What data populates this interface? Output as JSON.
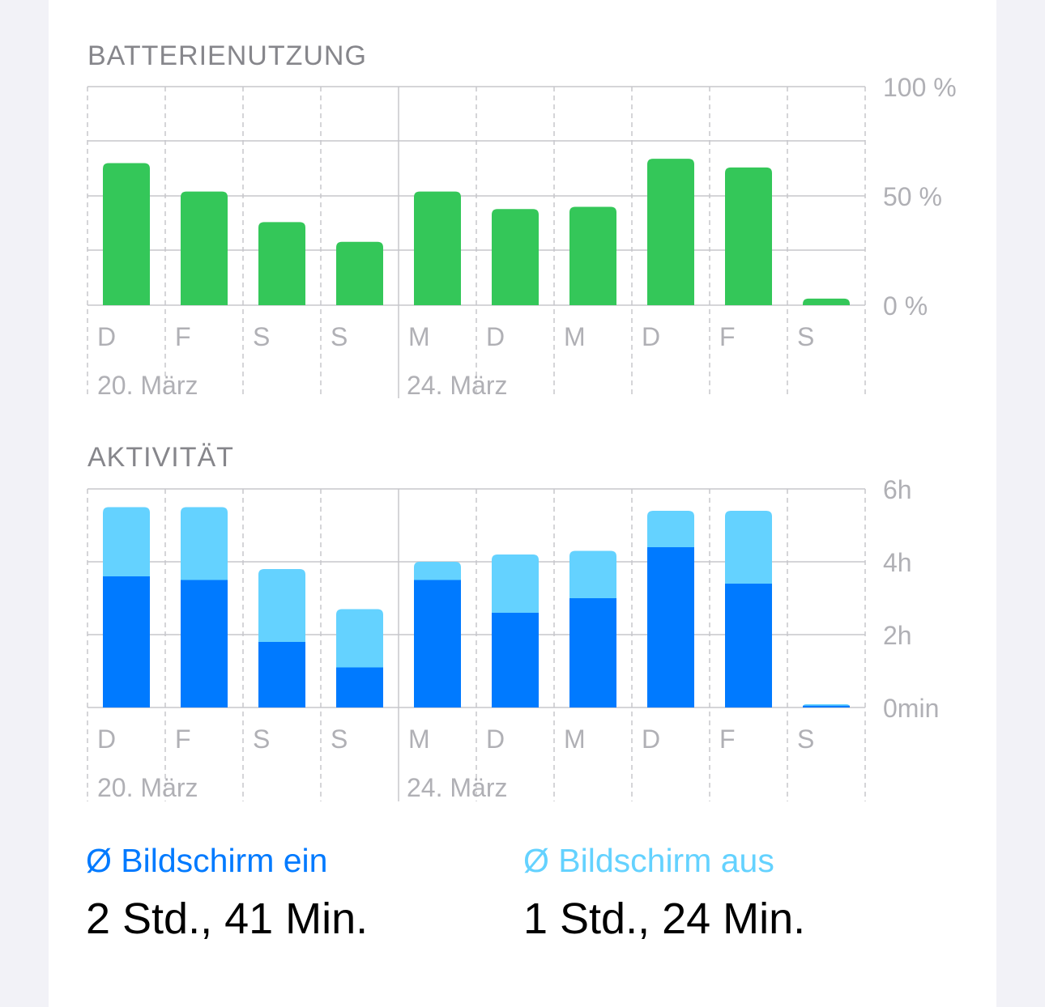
{
  "battery": {
    "title": "BATTERIENUTZUNG",
    "y_ticks": [
      "100 %",
      "50 %",
      "0 %"
    ]
  },
  "activity": {
    "title": "AKTIVITÄT",
    "y_ticks": [
      "6h",
      "4h",
      "2h",
      "0min"
    ]
  },
  "day_labels": [
    "D",
    "F",
    "S",
    "S",
    "M",
    "D",
    "M",
    "D",
    "F",
    "S"
  ],
  "date_labels": [
    "20. März",
    "24. März"
  ],
  "legend": {
    "screen_on_label": "Ø Bildschirm ein",
    "screen_on_value": "2 Std., 41 Min.",
    "screen_off_label": "Ø Bildschirm aus",
    "screen_off_value": "1 Std., 24 Min."
  },
  "colors": {
    "battery_green": "#34c759",
    "screen_on_blue": "#007aff",
    "screen_off_light_blue": "#64d2ff",
    "grid": "#c7c7cc",
    "axis_text": "#b0b0b5"
  },
  "chart_data": [
    {
      "type": "bar",
      "title": "BATTERIENUTZUNG",
      "categories": [
        "D",
        "F",
        "S",
        "S",
        "M",
        "D",
        "M",
        "D",
        "F",
        "S"
      ],
      "values": [
        65,
        52,
        38,
        29,
        52,
        44,
        45,
        67,
        63,
        3
      ],
      "ylim": [
        0,
        100
      ],
      "y_unit": "%",
      "grid": true
    },
    {
      "type": "bar",
      "stacked": true,
      "title": "AKTIVITÄT",
      "categories": [
        "D",
        "F",
        "S",
        "S",
        "M",
        "D",
        "M",
        "D",
        "F",
        "S"
      ],
      "series": [
        {
          "name": "Ø Bildschirm ein",
          "values": [
            3.6,
            3.5,
            1.8,
            1.1,
            3.5,
            2.6,
            3.0,
            4.4,
            3.4,
            0.05
          ]
        },
        {
          "name": "Ø Bildschirm aus",
          "values": [
            1.9,
            2.0,
            2.0,
            1.6,
            0.5,
            1.6,
            1.3,
            1.0,
            2.0,
            0.04
          ]
        }
      ],
      "ylim": [
        0,
        6
      ],
      "y_unit": "h",
      "grid": true
    }
  ]
}
